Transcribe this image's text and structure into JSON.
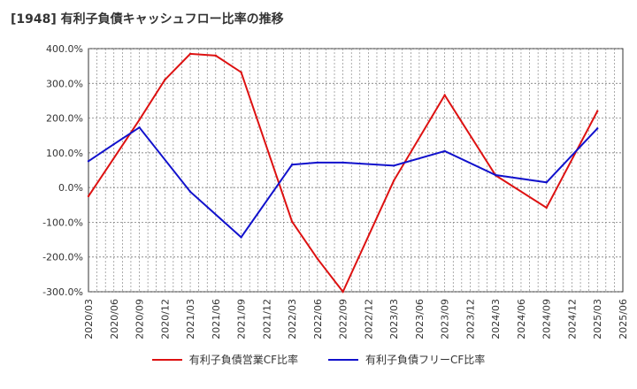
{
  "chart_data": {
    "type": "line",
    "title": "[1948]  有利子負債キャッシュフロー比率の推移",
    "xlabel": "",
    "ylabel": "",
    "ylim": [
      -300,
      400
    ],
    "yticks": [
      400,
      300,
      200,
      100,
      0,
      -100,
      -200,
      -300
    ],
    "ytick_labels": [
      "400.0%",
      "300.0%",
      "200.0%",
      "100.0%",
      "0.0%",
      "-100.0%",
      "-200.0%",
      "-300.0%"
    ],
    "x_ticks": [
      "2020/03",
      "2020/06",
      "2020/09",
      "2020/12",
      "2021/03",
      "2021/06",
      "2021/09",
      "2021/12",
      "2022/03",
      "2022/06",
      "2022/09",
      "2022/12",
      "2023/03",
      "2023/06",
      "2023/09",
      "2023/12",
      "2024/03",
      "2024/06",
      "2024/09",
      "2024/12",
      "2025/03",
      "2025/06"
    ],
    "grid": true,
    "legend_position": "bottom",
    "series": [
      {
        "name": "有利子負債営業CF比率",
        "color": "#dd1111",
        "x": [
          "2020/03",
          "2020/09",
          "2020/12",
          "2021/03",
          "2021/06",
          "2021/09",
          "2022/03",
          "2022/06",
          "2022/09",
          "2023/03",
          "2023/09",
          "2024/03",
          "2024/09",
          "2025/03"
        ],
        "values": [
          -25,
          195,
          310,
          385,
          380,
          332,
          -98,
          -205,
          -300,
          20,
          266,
          35,
          -58,
          220
        ]
      },
      {
        "name": "有利子負債フリーCF比率",
        "color": "#1111cc",
        "x": [
          "2020/03",
          "2020/06",
          "2020/09",
          "2021/03",
          "2021/09",
          "2022/03",
          "2022/06",
          "2022/09",
          "2023/03",
          "2023/09",
          "2024/03",
          "2024/09",
          "2025/03"
        ],
        "values": [
          76,
          125,
          173,
          -12,
          -143,
          66,
          72,
          72,
          63,
          105,
          36,
          15,
          170
        ]
      }
    ]
  }
}
